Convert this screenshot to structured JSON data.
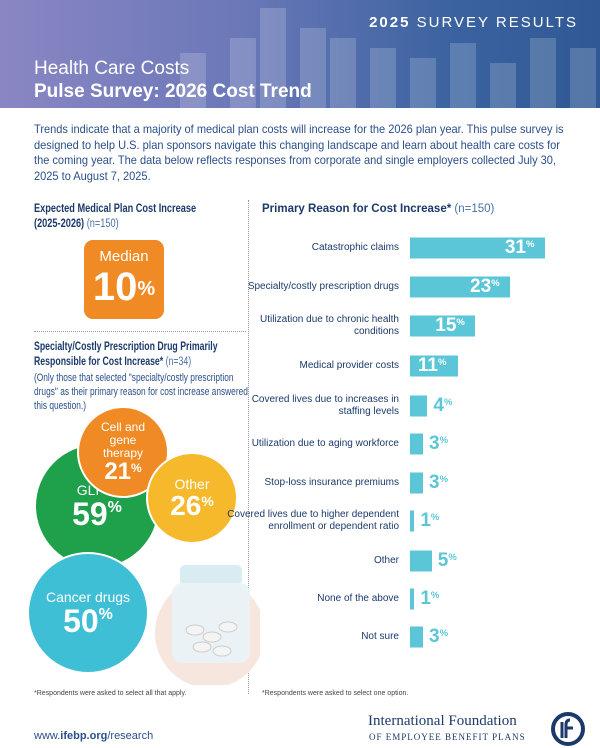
{
  "header": {
    "badge_bold": "2025",
    "badge_rest": "SURVEY RESULTS",
    "title_line1": "Health Care Costs",
    "title_line2": "Pulse Survey: 2026 Cost Trend"
  },
  "intro": "Trends indicate that a majority of medical plan costs will increase for the 2026 plan year. This pulse survey is designed to help U.S. plan sponsors navigate this changing landscape and learn about health care costs for the coming year. The data below reflects responses from corporate and single employers collected July 30, 2025 to August 7, 2025.",
  "expected": {
    "title1": "Expected Medical Plan Cost Increase",
    "title2": "(2025-2026)",
    "n": "(n=150)",
    "median_label": "Median",
    "median_value": "10",
    "pct": "%"
  },
  "specialty": {
    "title1": "Specialty/Costly Prescription Drug Primarily",
    "title2": "Responsible for Cost Increase*",
    "n": "(n=34)",
    "note": "(Only those that selected \"specialty/costly prescription drugs\" as their primary reason for cost increase answered this question.)",
    "items": [
      {
        "label": "Cell and gene therapy",
        "value": "21",
        "color": "#ef8a24"
      },
      {
        "label": "Other",
        "value": "26",
        "color": "#f6b92b"
      },
      {
        "label": "GLP-1",
        "value": "59",
        "color": "#1fa04a"
      },
      {
        "label": "Cancer drugs",
        "value": "50",
        "color": "#3fbfd6"
      }
    ],
    "footnote": "*Respondents were asked to select all that apply."
  },
  "chart_data": {
    "type": "bar",
    "orientation": "horizontal",
    "title": "Primary Reason for Cost Increase*",
    "n": "(n=150)",
    "unit": "%",
    "bar_color": "#5bc6d8",
    "categories": [
      "Catastrophic claims",
      "Specialty/costly prescription drugs",
      "Utilization due to chronic health conditions",
      "Medical provider costs",
      "Covered lives due to increases in staffing levels",
      "Utilization due to aging workforce",
      "Stop-loss insurance premiums",
      "Covered lives due to higher dependent enrollment or dependent ratio",
      "Other",
      "None of the above",
      "Not sure"
    ],
    "values": [
      31,
      23,
      15,
      11,
      4,
      3,
      3,
      1,
      5,
      1,
      3
    ],
    "footnote": "*Respondents were asked to select one option."
  },
  "footer": {
    "url_pre": "www.",
    "url_bold": "ifebp.org",
    "url_post": "/research",
    "logo_line1": "International Foundation",
    "logo_line2": "OF EMPLOYEE BENEFIT PLANS"
  }
}
